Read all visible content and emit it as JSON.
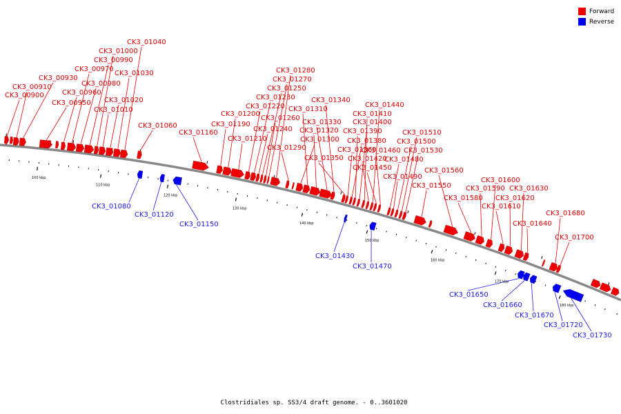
{
  "legend": {
    "forward_label": "Forward",
    "reverse_label": "Reverse",
    "forward_color": "#ee0000",
    "reverse_color": "#0000ee"
  },
  "caption": "Clostridiales sp. SS3/4 draft genome. - 0..3601020",
  "colors": {
    "backbone": "#888888",
    "forward": "#ee0000",
    "reverse": "#0000ee",
    "label_forward": "#dd0000",
    "label_reverse": "#1a1aee"
  },
  "kbp_marks": [
    "100 kbp",
    "110 kbp",
    "120 kbp",
    "130 kbp",
    "140 kbp",
    "150 kbp",
    "160 kbp",
    "170 kbp",
    "180 kbp"
  ],
  "forward_genes": [
    "CK3_00900",
    "CK3_00910",
    "CK3_00930",
    "CK3_00950",
    "CK3_00960",
    "CK3_00970",
    "CK3_00980",
    "CK3_00990",
    "CK3_01000",
    "CK3_01010",
    "CK3_01020",
    "CK3_01030",
    "CK3_01040",
    "CK3_01060",
    "CK3_01160",
    "CK3_01190",
    "CK3_01200",
    "CK3_01210",
    "CK3_01220",
    "CK3_01230",
    "CK3_01240",
    "CK3_01250",
    "CK3_01260",
    "CK3_01270",
    "CK3_01280",
    "CK3_01290",
    "CK3_01300",
    "CK3_01310",
    "CK3_01320",
    "CK3_01330",
    "CK3_01340",
    "CK3_01350",
    "CK3_01360",
    "CK3_01380",
    "CK3_01390",
    "CK3_01400",
    "CK3_01410",
    "CK3_01420",
    "CK3_01440",
    "CK3_01450",
    "CK3_01460",
    "CK3_01480",
    "CK3_01490",
    "CK3_01500",
    "CK3_01510",
    "CK3_01530",
    "CK3_01550",
    "CK3_01560",
    "CK3_01580",
    "CK3_01590",
    "CK3_01600",
    "CK3_01610",
    "CK3_01620",
    "CK3_01630",
    "CK3_01640",
    "CK3_01680",
    "CK3_01700"
  ],
  "reverse_genes": [
    "CK3_01080",
    "CK3_01120",
    "CK3_01150",
    "CK3_01430",
    "CK3_01470",
    "CK3_01650",
    "CK3_01660",
    "CK3_01670",
    "CK3_01720",
    "CK3_01730"
  ]
}
